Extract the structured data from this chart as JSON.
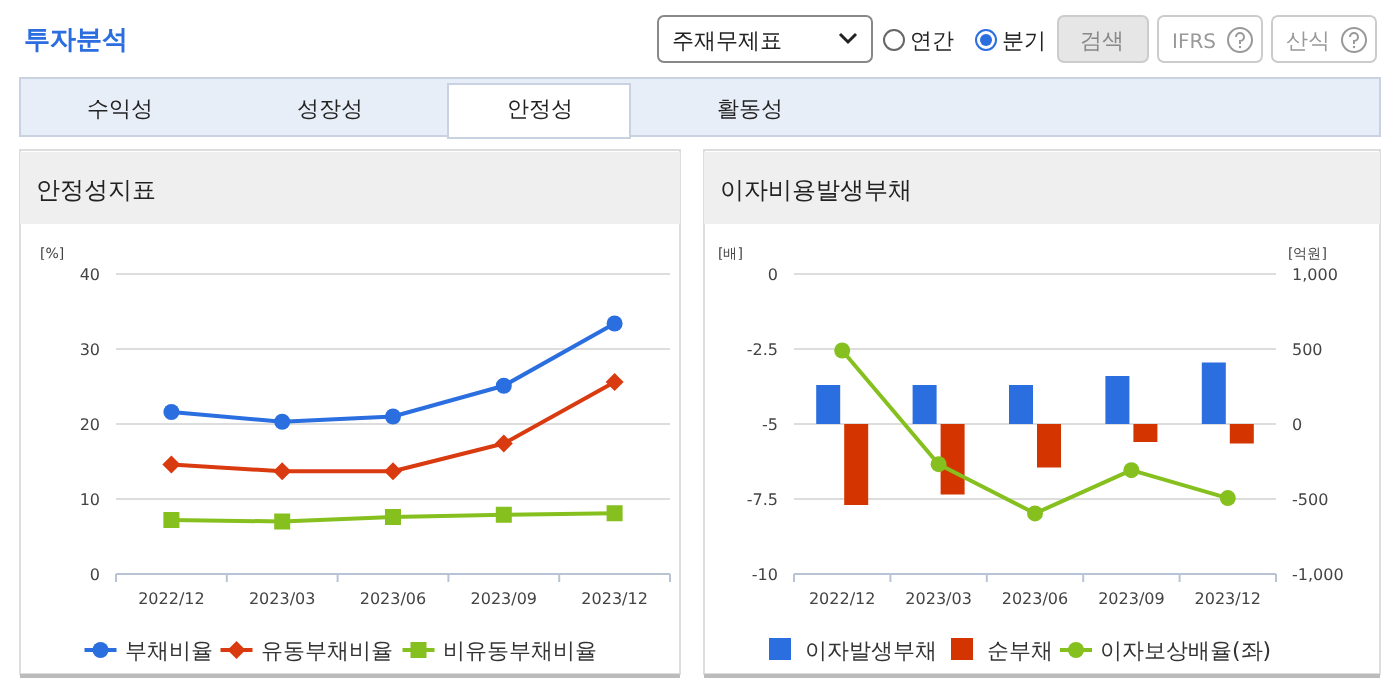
{
  "chart_data": [
    {
      "type": "other",
      "title": "투자분석",
      "annotations": [
        "주재무제표",
        "연간",
        "분기",
        "검색",
        "IFRS",
        "산식",
        "수익성",
        "성장성",
        "안정성",
        "활동성"
      ]
    },
    {
      "type": "line",
      "title": "안정성지표",
      "ylabel": "[%]",
      "categories": [
        "2022/12",
        "2023/03",
        "2023/06",
        "2023/09",
        "2023/12"
      ],
      "ylim": [
        0,
        40
      ],
      "yticks": [
        0,
        10,
        20,
        30,
        40
      ],
      "grid": "y",
      "legend": "bottom",
      "series": [
        {
          "name": "부채비율",
          "color": "#2a6ee0",
          "marker": "circle",
          "values": [
            21.6,
            20.3,
            21.0,
            25.1,
            33.4
          ]
        },
        {
          "name": "유동부채비율",
          "color": "#d93a10",
          "marker": "diamond",
          "values": [
            14.6,
            13.7,
            13.7,
            17.4,
            25.6
          ]
        },
        {
          "name": "비유동부채비율",
          "color": "#86c01e",
          "marker": "square",
          "values": [
            7.2,
            7.0,
            7.6,
            7.9,
            8.1
          ]
        }
      ]
    },
    {
      "type": "bar",
      "title": "이자비용발생부채",
      "ylabel": "[배]",
      "y2label": "[억원]",
      "categories": [
        "2022/12",
        "2023/03",
        "2023/06",
        "2023/09",
        "2023/12"
      ],
      "ylim": [
        -10,
        0
      ],
      "yticks": [
        -10,
        -7.5,
        -5,
        -2.5,
        0
      ],
      "y2lim": [
        -1000,
        1000
      ],
      "y2ticks": [
        {
          "value": -1000,
          "label": "-1,000"
        },
        -500,
        0,
        500,
        {
          "value": 1000,
          "label": "1,000"
        }
      ],
      "grid": "y",
      "legend": "bottom",
      "series": [
        {
          "name": "이자발생부채",
          "color": "#2a6ee0",
          "axis": "y2",
          "values": [
            260,
            260,
            260,
            320,
            410
          ]
        },
        {
          "name": "순부채",
          "color": "#d43500",
          "axis": "y2",
          "values": [
            -540,
            -470,
            -290,
            -120,
            -130
          ]
        },
        {
          "name": "이자보상배율(좌)",
          "type": "line",
          "marker": "circle",
          "color": "#86c01e",
          "axis": "y",
          "values": [
            -2.55,
            -6.34,
            -7.98,
            -6.54,
            -7.47
          ]
        }
      ]
    }
  ]
}
